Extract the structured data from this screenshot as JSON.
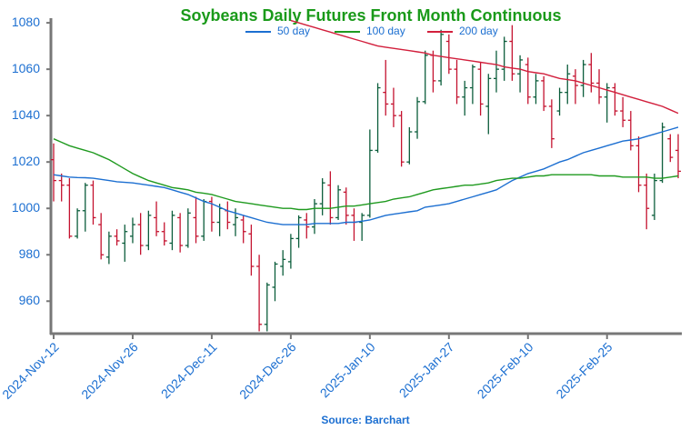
{
  "chart_data": {
    "type": "ohlc",
    "title": "Soybeans Daily Futures Front Month Continuous",
    "source": "Source: Barchart",
    "categories": [
      "2024-Nov-12",
      null,
      null,
      null,
      null,
      null,
      null,
      null,
      null,
      null,
      "2024-Nov-26",
      null,
      null,
      null,
      null,
      null,
      null,
      null,
      null,
      null,
      "2024-Dec-11",
      null,
      null,
      null,
      null,
      null,
      null,
      null,
      null,
      null,
      "2024-Dec-26",
      null,
      null,
      null,
      null,
      null,
      null,
      null,
      null,
      null,
      "2025-Jan-10",
      null,
      null,
      null,
      null,
      null,
      null,
      null,
      null,
      null,
      "2025-Jan-27",
      null,
      null,
      null,
      null,
      null,
      null,
      null,
      null,
      null,
      "2025-Feb-10",
      null,
      null,
      null,
      null,
      null,
      null,
      null,
      null,
      null,
      "2025-Feb-25",
      null,
      null,
      null,
      null,
      null,
      null,
      null,
      null,
      null
    ],
    "open": [
      1021,
      1012,
      1010,
      988,
      999,
      1010,
      993,
      979,
      988,
      985,
      988,
      993,
      984,
      996,
      990,
      985,
      996,
      984,
      996,
      988,
      1003,
      994,
      999,
      993,
      995,
      989,
      975,
      950,
      966,
      975,
      977,
      987,
      995,
      992,
      1002,
      1010,
      996,
      1007,
      997,
      994,
      997,
      1025,
      1050,
      1045,
      1040,
      1020,
      1033,
      1046,
      1066,
      1055,
      1072,
      1060,
      1048,
      1052,
      1060,
      1044,
      1056,
      1060,
      1072,
      1058,
      1062,
      1048,
      1055,
      1044,
      1042,
      1050,
      1057,
      1053,
      1062,
      1054,
      1048,
      1052,
      1042,
      1038,
      1027,
      1010,
      997,
      1012,
      1030,
      1025
    ],
    "high": [
      1028,
      1015,
      1013,
      1000,
      1011,
      1012,
      998,
      990,
      991,
      993,
      996,
      998,
      999,
      1003,
      994,
      999,
      998,
      1000,
      1005,
      1004,
      1005,
      1002,
      1003,
      1000,
      997,
      993,
      980,
      968,
      977,
      982,
      989,
      997,
      998,
      1004,
      1013,
      1016,
      1010,
      1009,
      1000,
      998,
      1034,
      1054,
      1064,
      1052,
      1042,
      1035,
      1048,
      1068,
      1068,
      1077,
      1075,
      1064,
      1055,
      1062,
      1063,
      1058,
      1068,
      1074,
      1079,
      1066,
      1065,
      1058,
      1057,
      1047,
      1052,
      1062,
      1060,
      1064,
      1067,
      1060,
      1054,
      1054,
      1048,
      1042,
      1031,
      1015,
      1015,
      1037,
      1032,
      1032
    ],
    "low": [
      1003,
      1003,
      987,
      987,
      990,
      993,
      978,
      976,
      984,
      977,
      985,
      980,
      982,
      988,
      984,
      982,
      981,
      983,
      985,
      986,
      990,
      988,
      991,
      988,
      985,
      971,
      947,
      947,
      960,
      971,
      974,
      983,
      987,
      989,
      997,
      993,
      995,
      993,
      986,
      986,
      996,
      1024,
      1040,
      1035,
      1018,
      1019,
      1030,
      1045,
      1050,
      1053,
      1058,
      1045,
      1040,
      1045,
      1040,
      1032,
      1050,
      1055,
      1055,
      1050,
      1045,
      1045,
      1042,
      1026,
      1040,
      1045,
      1045,
      1048,
      1050,
      1045,
      1037,
      1040,
      1035,
      1025,
      1007,
      991,
      995,
      1011,
      1020,
      1013
    ],
    "close": [
      1012,
      1010,
      988,
      999,
      1010,
      996,
      980,
      988,
      986,
      990,
      993,
      984,
      997,
      990,
      986,
      997,
      984,
      998,
      988,
      1003,
      994,
      1000,
      994,
      996,
      990,
      975,
      950,
      967,
      976,
      978,
      987,
      996,
      992,
      1002,
      1011,
      996,
      1008,
      997,
      994,
      997,
      1025,
      1052,
      1045,
      1040,
      1020,
      1033,
      1046,
      1066,
      1055,
      1075,
      1060,
      1048,
      1052,
      1061,
      1045,
      1056,
      1060,
      1072,
      1058,
      1064,
      1048,
      1055,
      1044,
      1030,
      1050,
      1058,
      1053,
      1062,
      1054,
      1048,
      1052,
      1042,
      1038,
      1027,
      1010,
      1000,
      1012,
      1035,
      1022,
      1016
    ],
    "up_color": "#0b5d3b",
    "down_color": "#c4122f",
    "series": [
      {
        "name": "50 day",
        "color": "#1c6fd1",
        "values": [
          1014.5,
          1014,
          1013.5,
          1013.3,
          1013.2,
          1013,
          1012.5,
          1012,
          1011.5,
          1011.2,
          1011,
          1010.5,
          1010,
          1009.5,
          1009,
          1008,
          1007,
          1006,
          1004.5,
          1003,
          1002,
          1000.5,
          999,
          998,
          997,
          996,
          995,
          994,
          993.5,
          993,
          993,
          993,
          993,
          993.5,
          993.5,
          993.5,
          993.5,
          994,
          994,
          994.5,
          995,
          996,
          997,
          997.5,
          998,
          998.5,
          999,
          1000.5,
          1001,
          1001.5,
          1002,
          1003,
          1004,
          1005,
          1006,
          1007,
          1008,
          1010,
          1012,
          1013.5,
          1015,
          1016,
          1017,
          1018.5,
          1020,
          1021,
          1022.5,
          1024,
          1025,
          1026,
          1027,
          1028,
          1029,
          1029.5,
          1030,
          1031,
          1032,
          1033,
          1034,
          1035
        ]
      },
      {
        "name": "100 day",
        "color": "#1f9a1f",
        "values": [
          1030,
          1028.5,
          1027,
          1026,
          1025,
          1024,
          1022.5,
          1021,
          1019,
          1017,
          1015,
          1013.5,
          1012,
          1011,
          1010,
          1009,
          1008.5,
          1008,
          1007,
          1006.5,
          1006,
          1005,
          1004,
          1003,
          1002.5,
          1002,
          1001.5,
          1001,
          1000.5,
          1000,
          1000,
          999.5,
          999.5,
          1000,
          1000,
          1000,
          1000.5,
          1001,
          1001,
          1001.5,
          1002,
          1002.5,
          1003,
          1004,
          1004.5,
          1005,
          1006,
          1007,
          1008,
          1008.5,
          1009,
          1009.5,
          1010,
          1010,
          1010.5,
          1011,
          1012,
          1012.5,
          1013,
          1013,
          1013.5,
          1014,
          1014,
          1014.5,
          1014.5,
          1014.5,
          1014.5,
          1014.5,
          1014.5,
          1014,
          1014,
          1014,
          1013.5,
          1013.5,
          1013.5,
          1013.5,
          1013,
          1013,
          1013.5,
          1014
        ]
      },
      {
        "name": "200 day",
        "color": "#d21f3c",
        "values": [
          null,
          null,
          null,
          null,
          null,
          null,
          null,
          null,
          null,
          null,
          null,
          null,
          null,
          null,
          null,
          null,
          null,
          null,
          null,
          null,
          null,
          null,
          null,
          null,
          null,
          null,
          null,
          null,
          null,
          null,
          1081,
          1080,
          1079,
          1078,
          1077,
          1076,
          1075,
          1074,
          1073,
          1072,
          1071,
          1070,
          1069.5,
          1069,
          1068.5,
          1068,
          1067.5,
          1067,
          1066,
          1065.5,
          1065,
          1064.5,
          1064,
          1063.5,
          1063,
          1062.5,
          1062,
          1061,
          1060.5,
          1060,
          1059,
          1058.5,
          1058,
          1057,
          1056,
          1055.5,
          1055,
          1054,
          1053,
          1052,
          1051,
          1050,
          1049,
          1048,
          1047,
          1046,
          1045,
          1044,
          1042.5,
          1041
        ]
      }
    ],
    "ylim": [
      946,
      1082
    ],
    "yticks": [
      960,
      980,
      1000,
      1020,
      1040,
      1060,
      1080
    ]
  }
}
